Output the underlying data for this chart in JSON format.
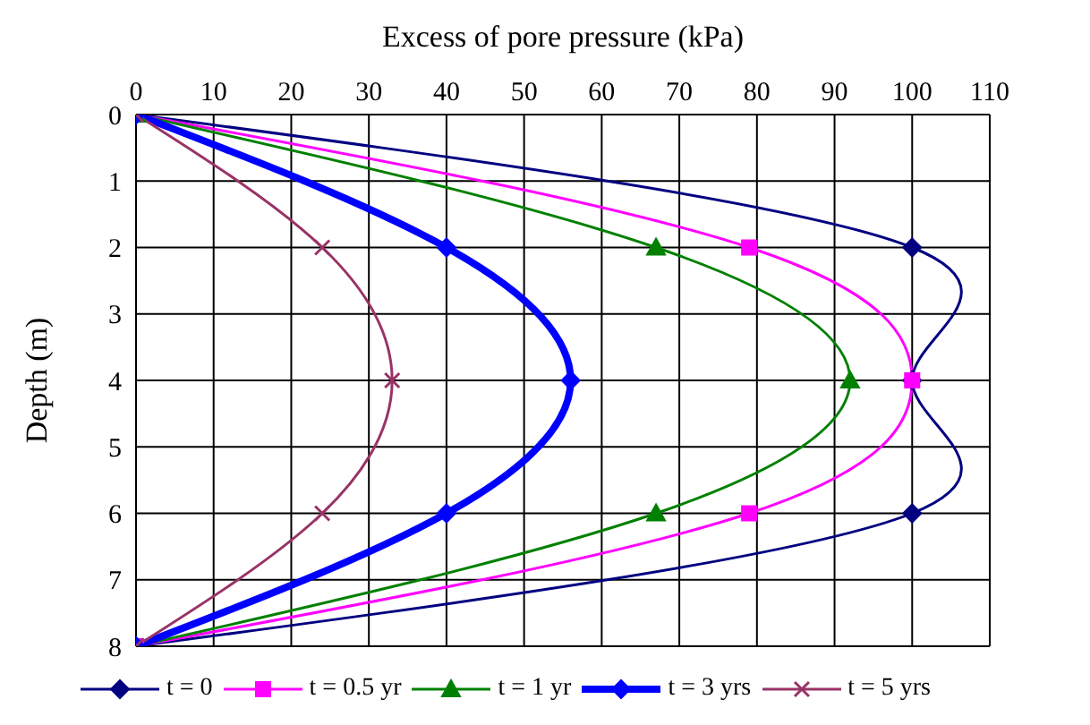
{
  "chart_data": {
    "type": "line",
    "orientation": "horizontal",
    "xlabel": "Excess of pore pressure (kPa)",
    "ylabel": "Depth (m)",
    "x": [
      0,
      2,
      4,
      6,
      8
    ],
    "series": [
      {
        "name": "t = 0",
        "color": "#000080",
        "marker": "diamond",
        "values": [
          0,
          100,
          100,
          100,
          0
        ]
      },
      {
        "name": "t = 0.5 yr",
        "color": "#ff00ff",
        "marker": "square",
        "values": [
          0,
          79,
          100,
          79,
          0
        ]
      },
      {
        "name": "t = 1 yr",
        "color": "#008000",
        "marker": "triangle",
        "values": [
          0,
          67,
          92,
          67,
          0
        ]
      },
      {
        "name": "t = 3 yrs",
        "color": "#0000ff",
        "marker": "diamond",
        "values": [
          0,
          40,
          56,
          40,
          0
        ]
      },
      {
        "name": "t = 5 yrs",
        "color": "#993366",
        "marker": "cross",
        "values": [
          0,
          24,
          33,
          24,
          0
        ]
      }
    ],
    "xlim": [
      0,
      110
    ],
    "xticks": [
      0,
      10,
      20,
      30,
      40,
      50,
      60,
      70,
      80,
      90,
      100,
      110
    ],
    "ylim": [
      8,
      0
    ],
    "yticks": [
      0,
      1,
      2,
      3,
      4,
      5,
      6,
      7,
      8
    ],
    "grid": true,
    "legend": "bottom",
    "line_style": "solid"
  }
}
